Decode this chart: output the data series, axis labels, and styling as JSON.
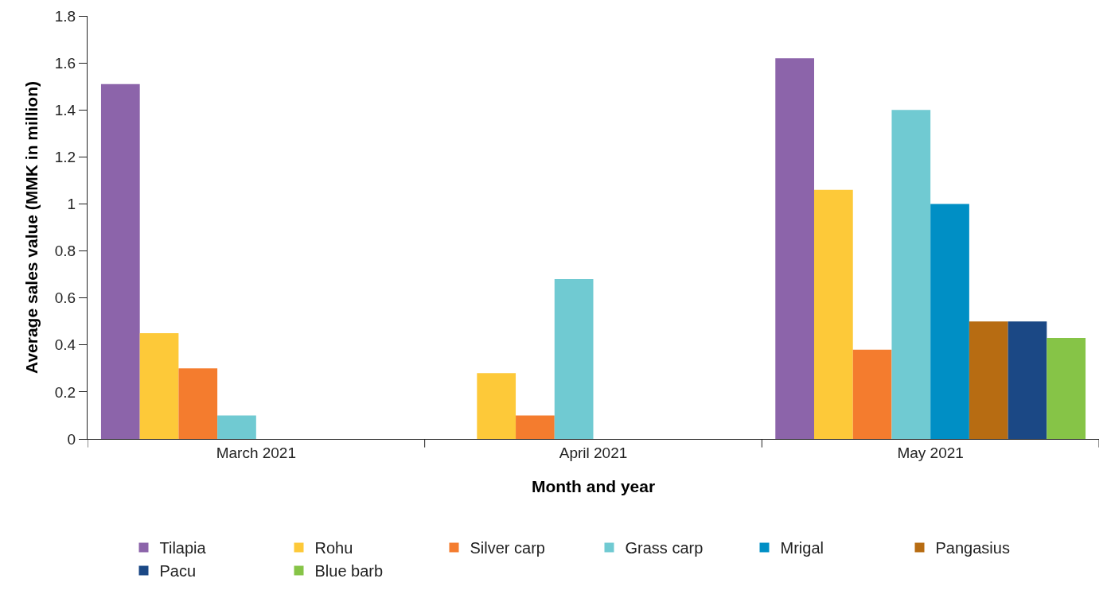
{
  "chart_data": {
    "type": "bar",
    "xlabel": "Month and year",
    "ylabel": "Average sales value (MMK in million)",
    "categories": [
      "March 2021",
      "April 2021",
      "May 2021"
    ],
    "series": [
      {
        "name": "Tilapia",
        "color": "#8c64aa",
        "values": [
          1.51,
          0,
          1.62
        ]
      },
      {
        "name": "Rohu",
        "color": "#fdc939",
        "values": [
          0.45,
          0.28,
          1.06
        ]
      },
      {
        "name": "Silver carp",
        "color": "#f47c2e",
        "values": [
          0.3,
          0.1,
          0.38
        ]
      },
      {
        "name": "Grass carp",
        "color": "#70cad2",
        "values": [
          0.1,
          0.68,
          1.4
        ]
      },
      {
        "name": "Mrigal",
        "color": "#008fc5",
        "values": [
          0,
          0,
          1.0
        ]
      },
      {
        "name": "Pangasius",
        "color": "#b76c12",
        "values": [
          0,
          0,
          0.5
        ]
      },
      {
        "name": "Pacu",
        "color": "#1b4885",
        "values": [
          0,
          0,
          0.5
        ]
      },
      {
        "name": "Blue barb",
        "color": "#86c447",
        "values": [
          0,
          0,
          0.43
        ]
      }
    ],
    "ylim": [
      0,
      1.8
    ],
    "yticks": [
      0,
      0.2,
      0.4,
      0.6,
      0.8,
      1,
      1.2,
      1.4,
      1.6,
      1.8
    ],
    "legend": "bottom"
  }
}
